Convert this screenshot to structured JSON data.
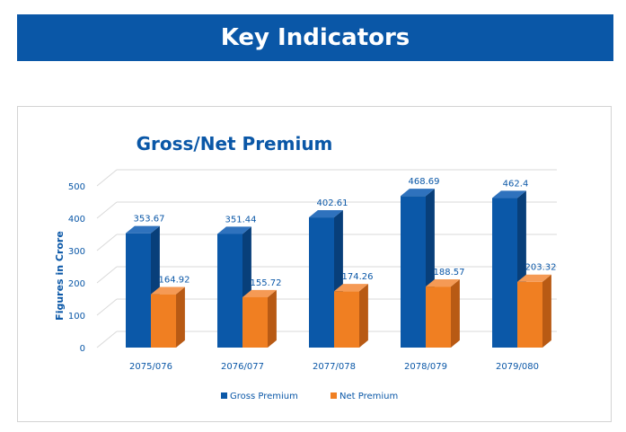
{
  "banner": {
    "title": "Key Indicators"
  },
  "colors": {
    "banner_bg": "#0a57a7",
    "gross_front": "#0b58a8",
    "gross_side": "#083f7a",
    "gross_top": "#2f72bd",
    "net_front": "#f07f22",
    "net_side": "#b85a14",
    "net_top": "#f59a55",
    "text": "#0a57a7"
  },
  "chart_data": {
    "type": "bar",
    "title": "Gross/Net Premium",
    "xlabel": "",
    "ylabel": "Figures in Crore",
    "ylim": [
      0,
      500
    ],
    "yticks": [
      0,
      100,
      200,
      300,
      400,
      500
    ],
    "categories": [
      "2075/076",
      "2076/077",
      "2077/078",
      "2078/079",
      "2079/080"
    ],
    "series": [
      {
        "name": "Gross Premium",
        "values": [
          353.67,
          351.44,
          402.61,
          468.69,
          462.4
        ]
      },
      {
        "name": "Net Premium",
        "values": [
          164.92,
          155.72,
          174.26,
          188.57,
          203.32
        ]
      }
    ],
    "legend_position": "bottom",
    "grid": true,
    "style": "3d-clustered-column"
  }
}
